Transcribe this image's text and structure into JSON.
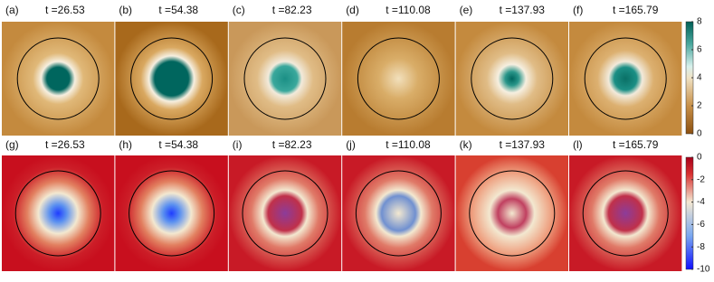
{
  "figure": {
    "rows": [
      {
        "panels": [
          {
            "label": "(a)",
            "time": "t =26.53"
          },
          {
            "label": "(b)",
            "time": "t =54.38"
          },
          {
            "label": "(c)",
            "time": "t =82.23"
          },
          {
            "label": "(d)",
            "time": "t =110.08"
          },
          {
            "label": "(e)",
            "time": "t =137.93"
          },
          {
            "label": "(f)",
            "time": "t =165.79"
          }
        ]
      },
      {
        "panels": [
          {
            "label": "(g)",
            "time": "t =26.53"
          },
          {
            "label": "(h)",
            "time": "t =54.38"
          },
          {
            "label": "(i)",
            "time": "t =82.23"
          },
          {
            "label": "(j)",
            "time": "t =110.08"
          },
          {
            "label": "(k)",
            "time": "t =137.93"
          },
          {
            "label": "(l)",
            "time": "t =165.79"
          }
        ]
      }
    ],
    "colorbars": [
      {
        "ticks": [
          0,
          2,
          4,
          6,
          8
        ]
      },
      {
        "ticks": [
          0,
          -2,
          -4,
          -6,
          -8,
          -10
        ]
      }
    ]
  }
}
